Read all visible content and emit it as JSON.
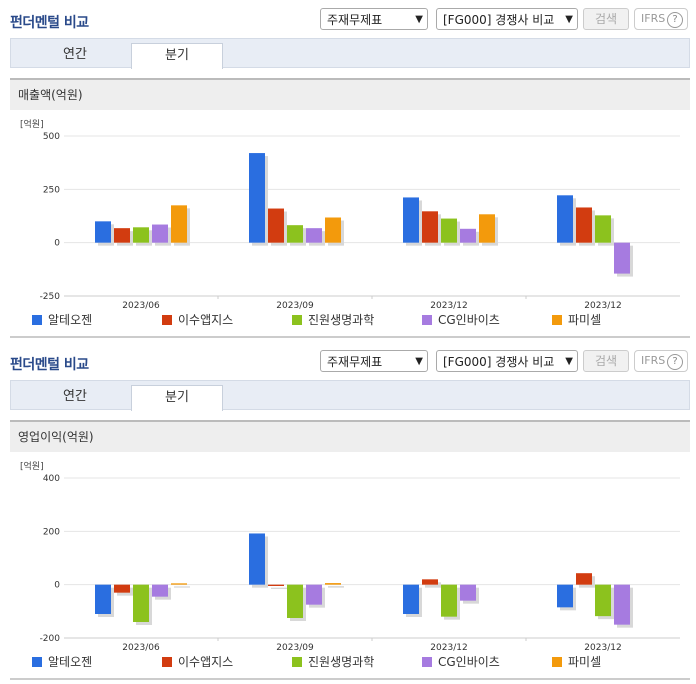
{
  "panels": [
    {
      "title": "펀더멘털 비교",
      "select1": "주재무제표",
      "select2": "[FG000] 경쟁사 비교",
      "search_label": "검색",
      "ifrs_label": "IFRS",
      "ifrs_help": "?",
      "tabs": [
        "연간",
        "분기"
      ],
      "active_tab": "분기",
      "section_title": "매출액(억원)",
      "unit": "[억원]"
    },
    {
      "title": "펀더멘털 비교",
      "select1": "주재무제표",
      "select2": "[FG000] 경쟁사 비교",
      "search_label": "검색",
      "ifrs_label": "IFRS",
      "ifrs_help": "?",
      "tabs": [
        "연간",
        "분기"
      ],
      "active_tab": "분기",
      "section_title": "영업이익(억원)",
      "unit": "[억원]"
    }
  ],
  "chart_data": [
    {
      "type": "bar",
      "title": "매출액(억원)",
      "ylabel": "[억원]",
      "categories": [
        "2023/06",
        "2023/09",
        "2023/12",
        "2023/12"
      ],
      "ylim": [
        -250,
        500
      ],
      "yticks": [
        500,
        250,
        0,
        -250
      ],
      "series": [
        {
          "name": "알테오젠",
          "color": "#2a6ee0",
          "values": [
            100,
            420,
            212,
            222
          ]
        },
        {
          "name": "이수앱지스",
          "color": "#d23c10",
          "values": [
            68,
            160,
            147,
            165
          ]
        },
        {
          "name": "진원생명과학",
          "color": "#8cc21e",
          "values": [
            72,
            82,
            113,
            128
          ]
        },
        {
          "name": "CG인바이츠",
          "color": "#a67be0",
          "values": [
            85,
            68,
            65,
            -145
          ]
        },
        {
          "name": "파미셀",
          "color": "#f39a0c",
          "values": [
            175,
            118,
            133,
            null
          ]
        }
      ],
      "grid": true,
      "legend": "bottom"
    },
    {
      "type": "bar",
      "title": "영업이익(억원)",
      "ylabel": "[억원]",
      "categories": [
        "2023/06",
        "2023/09",
        "2023/12",
        "2023/12"
      ],
      "ylim": [
        -200,
        400
      ],
      "yticks": [
        400,
        200,
        0,
        -200
      ],
      "series": [
        {
          "name": "알테오젠",
          "color": "#2a6ee0",
          "values": [
            -110,
            192,
            -110,
            -85
          ]
        },
        {
          "name": "이수앱지스",
          "color": "#d23c10",
          "values": [
            -30,
            -5,
            20,
            43
          ]
        },
        {
          "name": "진원생명과학",
          "color": "#8cc21e",
          "values": [
            -140,
            -125,
            -120,
            -118
          ]
        },
        {
          "name": "CG인바이츠",
          "color": "#a67be0",
          "values": [
            -45,
            -75,
            -60,
            -150
          ]
        },
        {
          "name": "파미셀",
          "color": "#f39a0c",
          "values": [
            5,
            6,
            null,
            null
          ]
        }
      ],
      "grid": true,
      "legend": "bottom"
    }
  ]
}
